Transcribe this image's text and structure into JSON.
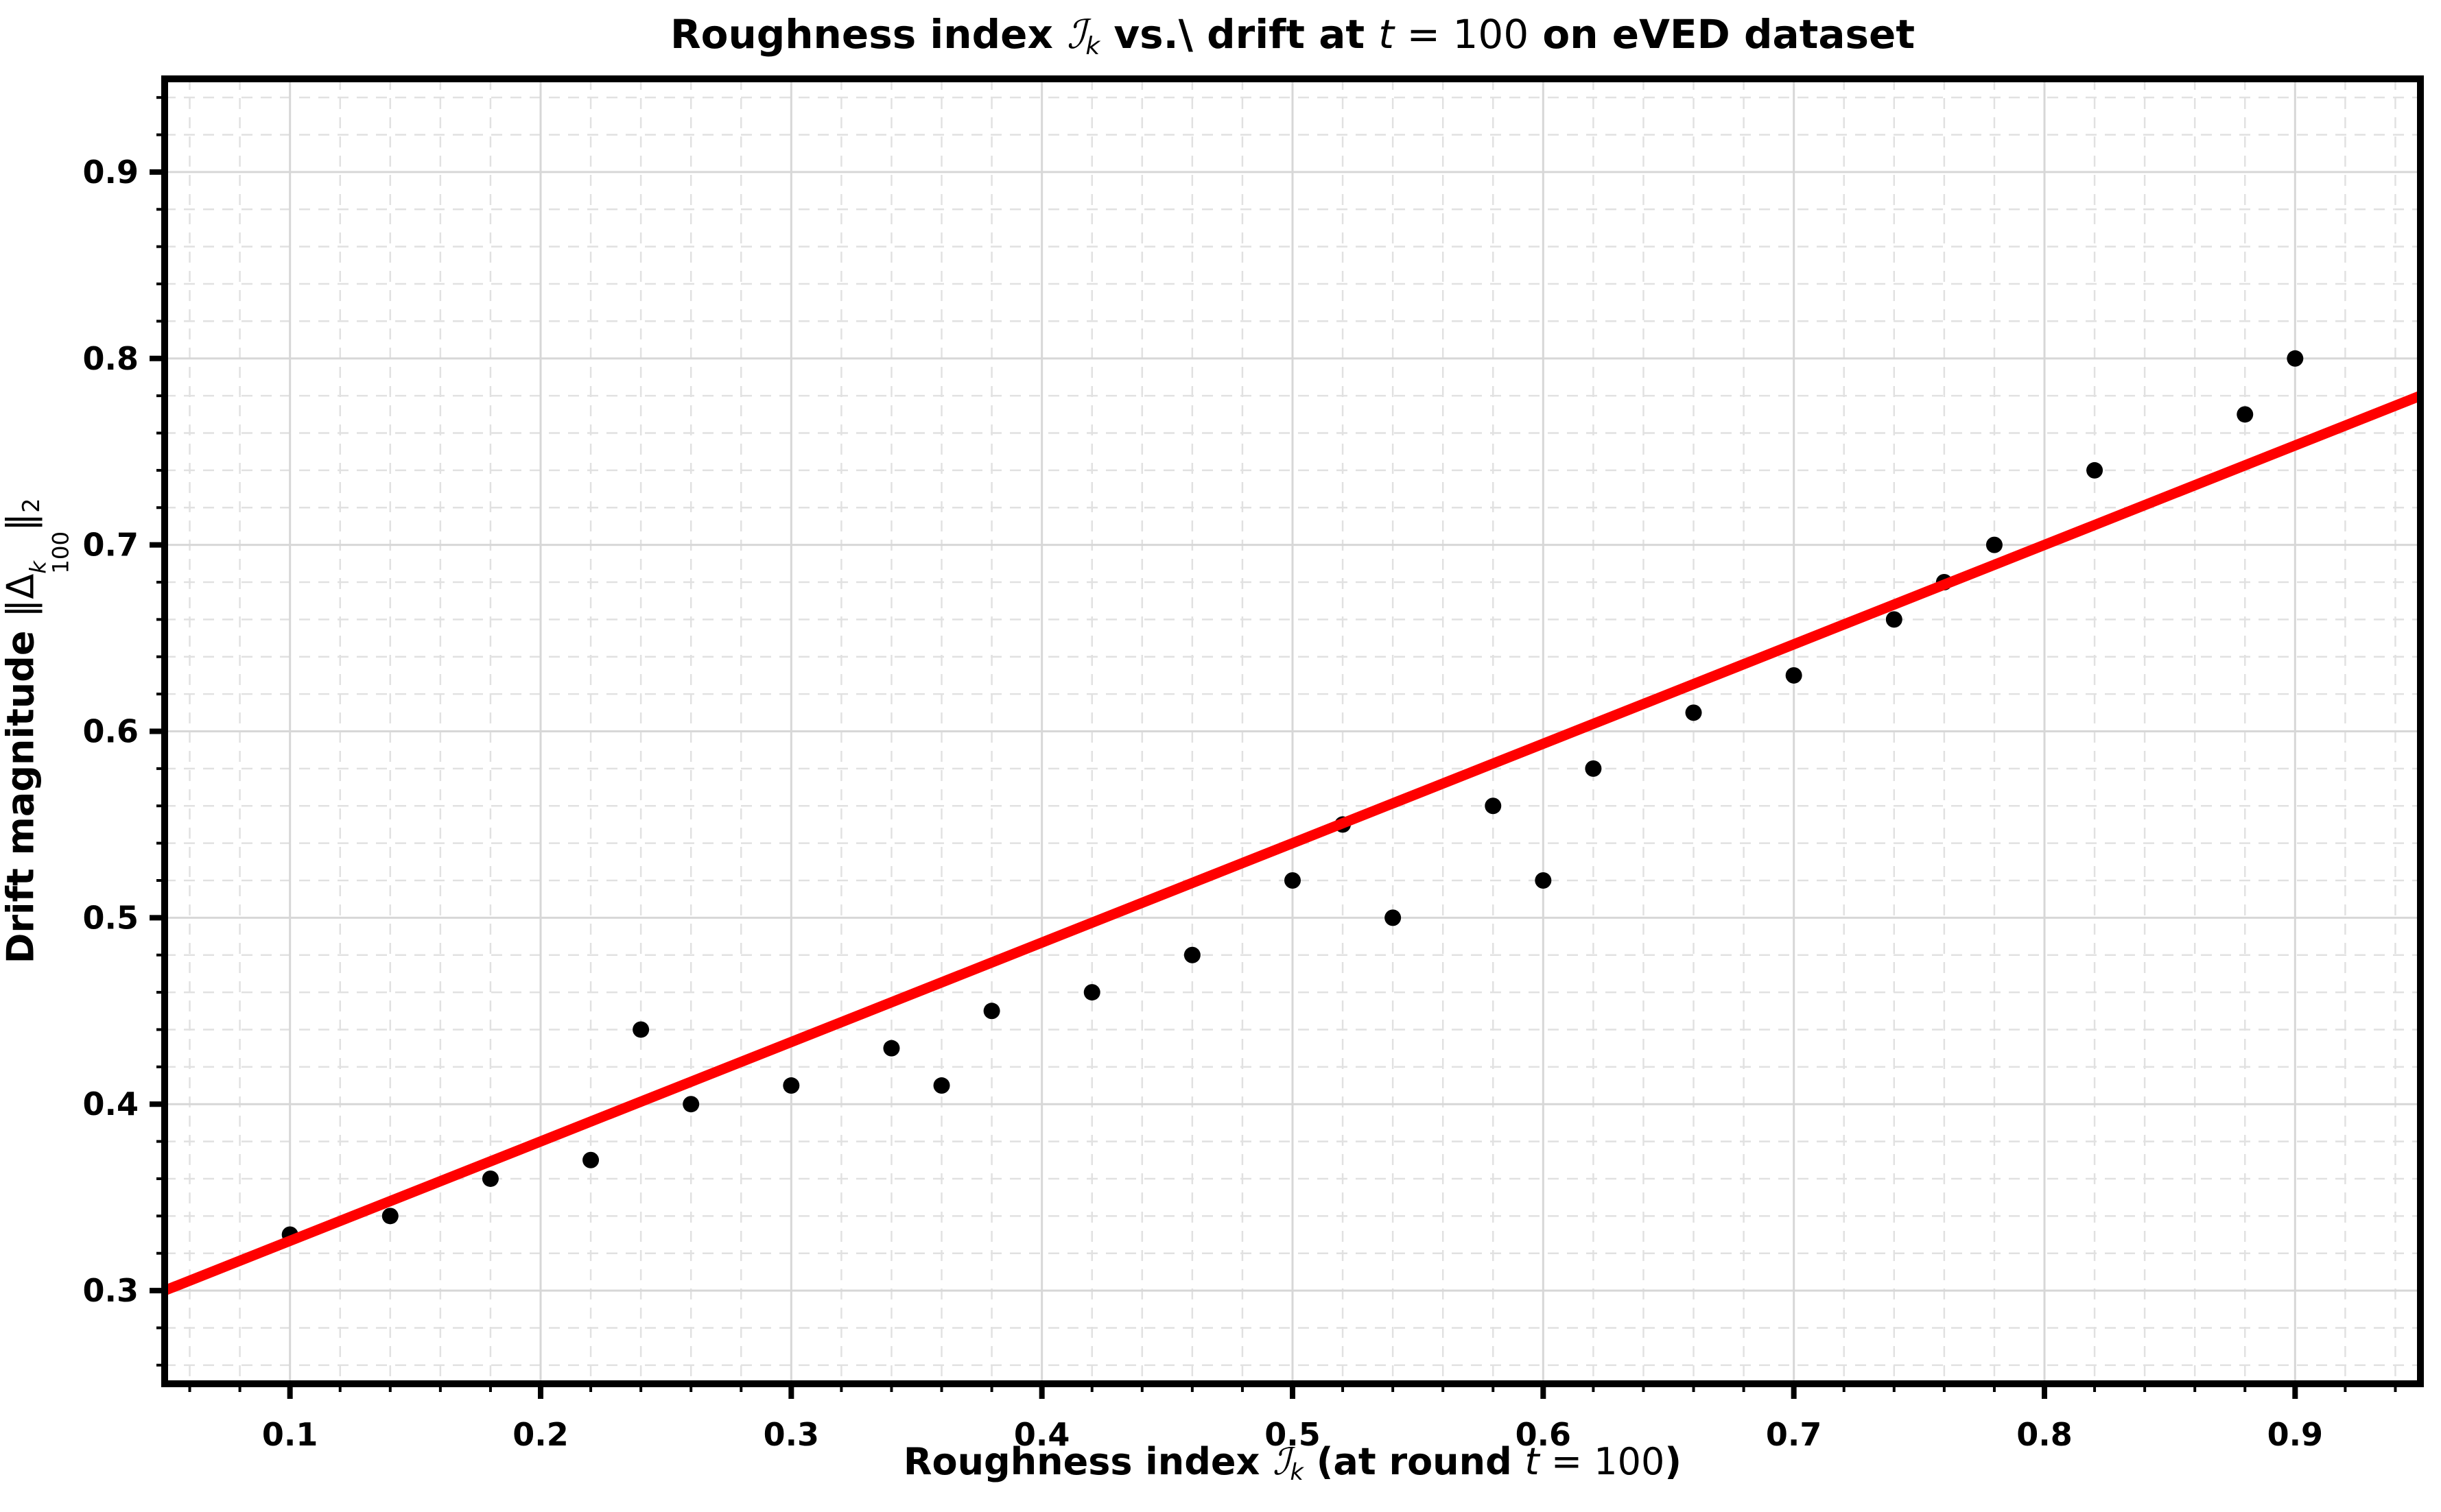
{
  "title": {
    "prefix": "Roughness index ",
    "cal_I": "ℐ",
    "sub_k": "k",
    "mid": " vs.\\ drift at ",
    "t_var": "t",
    "t_eq": " = 100",
    "suffix": " on eVED dataset"
  },
  "xlabel": {
    "prefix": "Roughness index ",
    "cal_I": "ℐ",
    "sub_k": "k",
    "mid": " (at round ",
    "t_var": "t",
    "t_eq": " = 100",
    "close_paren": ")"
  },
  "ylabel": {
    "prefix": "Drift magnitude ",
    "norm_open": "‖Δ",
    "sup_k": "k",
    "sub_100": "100",
    "norm_close": "‖",
    "sub_2": "2"
  },
  "chart_data": {
    "type": "scatter",
    "title": "Roughness index I_k vs.\\ drift at t = 100 on eVED dataset",
    "xlabel": "Roughness index I_k (at round t = 100)",
    "ylabel": "Drift magnitude ||Delta^k_100||_2",
    "xlim": [
      0.05,
      0.95
    ],
    "ylim": [
      0.25,
      0.95
    ],
    "xticks": [
      0.1,
      0.2,
      0.3,
      0.4,
      0.5,
      0.6,
      0.7,
      0.8,
      0.9
    ],
    "xtick_labels": [
      "0.1",
      "0.2",
      "0.3",
      "0.4",
      "0.5",
      "0.6",
      "0.7",
      "0.8",
      "0.9"
    ],
    "yticks": [
      0.3,
      0.4,
      0.5,
      0.6,
      0.7,
      0.8,
      0.9
    ],
    "ytick_labels": [
      "0.3",
      "0.4",
      "0.5",
      "0.6",
      "0.7",
      "0.8",
      "0.9"
    ],
    "minor_step": 0.02,
    "grid": {
      "major": true,
      "minor": true,
      "minor_style": "dashed"
    },
    "legend": "none",
    "series": [
      {
        "name": "scatter-points",
        "type": "scatter",
        "color": "#000000",
        "points": [
          [
            0.1,
            0.33
          ],
          [
            0.14,
            0.34
          ],
          [
            0.18,
            0.36
          ],
          [
            0.22,
            0.37
          ],
          [
            0.24,
            0.44
          ],
          [
            0.26,
            0.4
          ],
          [
            0.3,
            0.41
          ],
          [
            0.34,
            0.43
          ],
          [
            0.36,
            0.41
          ],
          [
            0.38,
            0.45
          ],
          [
            0.42,
            0.46
          ],
          [
            0.46,
            0.48
          ],
          [
            0.5,
            0.52
          ],
          [
            0.52,
            0.55
          ],
          [
            0.54,
            0.5
          ],
          [
            0.58,
            0.56
          ],
          [
            0.6,
            0.52
          ],
          [
            0.62,
            0.58
          ],
          [
            0.66,
            0.61
          ],
          [
            0.7,
            0.63
          ],
          [
            0.74,
            0.66
          ],
          [
            0.76,
            0.68
          ],
          [
            0.78,
            0.7
          ],
          [
            0.82,
            0.74
          ],
          [
            0.88,
            0.77
          ],
          [
            0.9,
            0.8
          ]
        ]
      },
      {
        "name": "linear-fit-line",
        "type": "line",
        "color": "#ff0000",
        "x": [
          0.05,
          0.95
        ],
        "y": [
          0.3,
          0.78
        ]
      }
    ],
    "colors": {
      "dot": "#000000",
      "fit_line": "#ff0000",
      "major_grid": "#d7d7d7",
      "minor_grid": "#e1e1e1",
      "spine": "#000000",
      "background": "#ffffff"
    }
  }
}
